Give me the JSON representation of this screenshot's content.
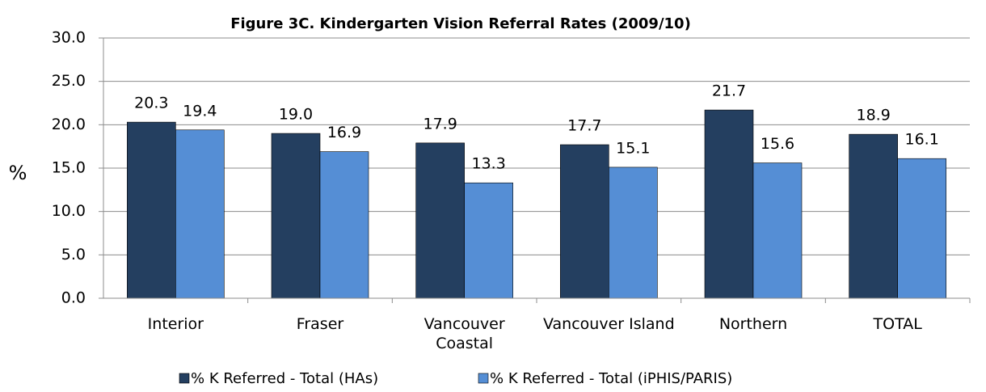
{
  "chart_data": {
    "type": "bar",
    "title": "Figure 3C. Kindergarten Vision Referral Rates (2009/10)",
    "y_label": "%",
    "categories": [
      "Interior",
      "Fraser",
      "Vancouver Coastal",
      "Vancouver Island",
      "Northern",
      "TOTAL"
    ],
    "series": [
      {
        "name": "% K Referred - Total (HAs)",
        "color": "#243f60",
        "values": [
          20.3,
          19.0,
          17.9,
          17.7,
          21.7,
          18.9
        ],
        "value_labels": [
          "20.3",
          "19.0",
          "17.9",
          "17.7",
          "21.7",
          "18.9"
        ]
      },
      {
        "name": "% K Referred - Total (iPHIS/PARIS)",
        "color": "#558ed5",
        "values": [
          19.4,
          16.9,
          13.3,
          15.1,
          15.6,
          16.1
        ],
        "value_labels": [
          "19.4",
          "16.9",
          "13.3",
          "15.1",
          "15.6",
          "16.1"
        ]
      }
    ],
    "ylim": [
      0,
      30
    ],
    "yticks": [
      {
        "value": 0,
        "label": "0.0"
      },
      {
        "value": 5,
        "label": "5.0"
      },
      {
        "value": 10,
        "label": "10.0"
      },
      {
        "value": 15,
        "label": "15.0"
      },
      {
        "value": 20,
        "label": "20.0"
      },
      {
        "value": 25,
        "label": "25.0"
      },
      {
        "value": 30,
        "label": "30.0"
      }
    ],
    "grid": true,
    "legend": "bottom"
  }
}
